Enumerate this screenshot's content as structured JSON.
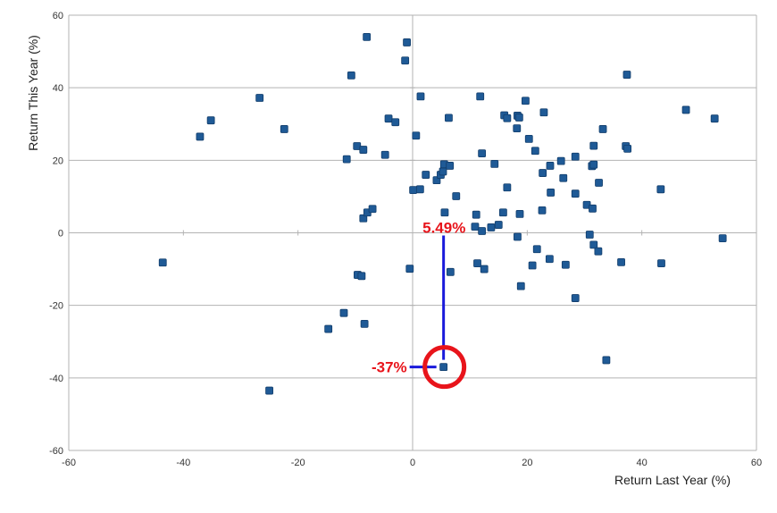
{
  "chart_data": {
    "type": "scatter",
    "title": "",
    "xlabel": "Return Last Year (%)",
    "ylabel": "Return This Year (%)",
    "xlim": [
      -60,
      60
    ],
    "ylim": [
      -60,
      60
    ],
    "x_ticks": [
      -60,
      -40,
      -20,
      0,
      20,
      40,
      60
    ],
    "y_ticks": [
      -60,
      -40,
      -20,
      0,
      20,
      40,
      60
    ],
    "grid": "horizontal",
    "marker_color": "#1f5a96",
    "series": [
      {
        "points": [
          [
            -43.6,
            -8.2
          ],
          [
            -37.1,
            26.5
          ],
          [
            -35.2,
            31.0
          ],
          [
            -26.7,
            37.2
          ],
          [
            -25.0,
            -43.5
          ],
          [
            -22.4,
            28.6
          ],
          [
            -14.7,
            -26.5
          ],
          [
            -12.0,
            -22.1
          ],
          [
            -11.5,
            20.3
          ],
          [
            -10.7,
            43.4
          ],
          [
            -9.7,
            23.9
          ],
          [
            -9.6,
            -11.6
          ],
          [
            -8.9,
            -11.9
          ],
          [
            -8.6,
            22.9
          ],
          [
            -8.6,
            4.0
          ],
          [
            -8.4,
            -25.1
          ],
          [
            -8.0,
            54.0
          ],
          [
            -7.9,
            5.6
          ],
          [
            -7.0,
            6.6
          ],
          [
            -4.8,
            21.5
          ],
          [
            -4.2,
            31.5
          ],
          [
            -3.0,
            30.5
          ],
          [
            -1.3,
            47.5
          ],
          [
            -1.0,
            52.5
          ],
          [
            -0.5,
            -9.9
          ],
          [
            0.1,
            11.8
          ],
          [
            0.6,
            26.8
          ],
          [
            1.3,
            12.0
          ],
          [
            1.4,
            37.6
          ],
          [
            2.3,
            16.0
          ],
          [
            4.2,
            14.5
          ],
          [
            4.9,
            16.0
          ],
          [
            5.3,
            16.9
          ],
          [
            5.5,
            18.9
          ],
          [
            5.6,
            5.6
          ],
          [
            5.4,
            -37.0
          ],
          [
            6.3,
            31.7
          ],
          [
            6.5,
            18.5
          ],
          [
            6.6,
            -10.8
          ],
          [
            7.6,
            10.1
          ],
          [
            10.9,
            1.7
          ],
          [
            11.1,
            5.0
          ],
          [
            11.3,
            -8.4
          ],
          [
            11.8,
            37.6
          ],
          [
            12.1,
            21.9
          ],
          [
            12.1,
            0.5
          ],
          [
            12.5,
            -10.0
          ],
          [
            13.7,
            1.5
          ],
          [
            14.3,
            19.0
          ],
          [
            15.0,
            2.2
          ],
          [
            15.8,
            5.6
          ],
          [
            16.0,
            32.4
          ],
          [
            16.5,
            31.6
          ],
          [
            16.5,
            12.5
          ],
          [
            18.2,
            28.8
          ],
          [
            18.3,
            -1.1
          ],
          [
            18.3,
            32.3
          ],
          [
            18.6,
            31.8
          ],
          [
            18.7,
            5.2
          ],
          [
            18.9,
            -14.7
          ],
          [
            19.7,
            36.4
          ],
          [
            20.3,
            25.9
          ],
          [
            20.9,
            -9.0
          ],
          [
            21.4,
            22.6
          ],
          [
            21.7,
            -4.5
          ],
          [
            22.6,
            6.2
          ],
          [
            22.7,
            16.5
          ],
          [
            22.9,
            33.2
          ],
          [
            23.9,
            -7.2
          ],
          [
            24.0,
            18.5
          ],
          [
            24.1,
            11.1
          ],
          [
            25.9,
            19.8
          ],
          [
            26.3,
            15.1
          ],
          [
            26.7,
            -8.8
          ],
          [
            28.4,
            21.0
          ],
          [
            28.4,
            10.8
          ],
          [
            28.4,
            -18.0
          ],
          [
            30.4,
            7.7
          ],
          [
            30.9,
            -0.5
          ],
          [
            31.3,
            18.4
          ],
          [
            31.4,
            6.7
          ],
          [
            31.6,
            -3.3
          ],
          [
            31.6,
            18.8
          ],
          [
            31.6,
            24.0
          ],
          [
            32.4,
            -5.1
          ],
          [
            32.5,
            13.8
          ],
          [
            33.2,
            28.6
          ],
          [
            33.8,
            -35.1
          ],
          [
            36.4,
            -8.1
          ],
          [
            37.2,
            23.9
          ],
          [
            37.4,
            43.6
          ],
          [
            37.5,
            23.2
          ],
          [
            43.3,
            12.0
          ],
          [
            43.4,
            -8.4
          ],
          [
            47.7,
            33.9
          ],
          [
            52.7,
            31.5
          ],
          [
            54.1,
            -1.5
          ]
        ]
      }
    ],
    "annotations": [
      {
        "text": "5.49%",
        "x": 5.49,
        "y": 0,
        "color": "#e8141b"
      },
      {
        "text": "-37%",
        "x": 5.4,
        "y": -37,
        "color": "#e8141b"
      }
    ],
    "highlight_point": [
      5.4,
      -37.0
    ],
    "annotation_line_color": "#1a1adb",
    "highlight_circle_color": "#e8141b"
  }
}
